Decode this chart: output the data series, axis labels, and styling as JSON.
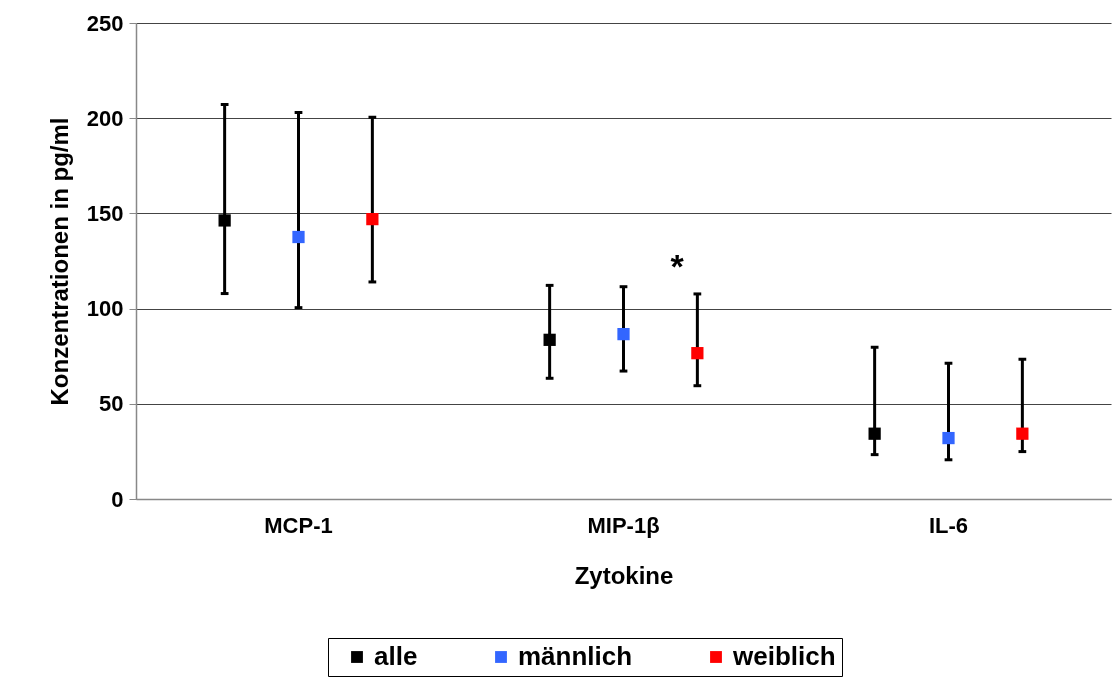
{
  "chart_data": {
    "type": "scatter",
    "xlabel": "Zytokine",
    "ylabel": "Konzentrationen in pg/ml",
    "categories": [
      "MCP-1",
      "MIP-1β",
      "IL-6"
    ],
    "series": [
      {
        "name": "alle",
        "color": "#000000",
        "values": [
          146.3,
          83.6,
          34.3
        ],
        "errors": [
          [
            107.9,
            207.2
          ],
          [
            63.4,
            112.2
          ],
          [
            23.3,
            79.7
          ]
        ]
      },
      {
        "name": "männlich",
        "color": "#3366ff",
        "values": [
          137.6,
          86.6,
          32
        ],
        "errors": [
          [
            100.5,
            203
          ],
          [
            67.2,
            111.5
          ],
          [
            20.6,
            71.3
          ]
        ]
      },
      {
        "name": "weiblich",
        "color": "#ff0000",
        "values": [
          147,
          76.6,
          34.3
        ],
        "errors": [
          [
            114,
            200.5
          ],
          [
            59.5,
            107.7
          ],
          [
            24.9,
            73.4
          ]
        ]
      }
    ],
    "annotations": [
      "*"
    ],
    "ylim": [
      0,
      250
    ],
    "yticks": [
      0,
      50,
      100,
      150,
      200,
      250
    ],
    "grid": "y",
    "legend": "bottom",
    "marker": "square"
  }
}
